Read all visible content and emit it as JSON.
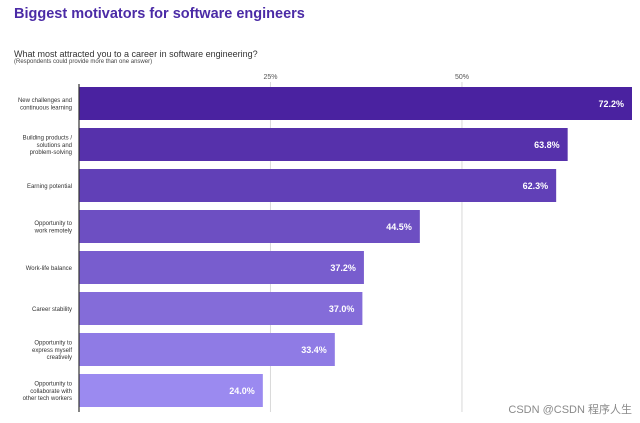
{
  "page": {
    "title": "Biggest motivators for software engineers",
    "question": "What most attracted you to a career in software engineering?",
    "note": "(Respondents could provide more than one answer)",
    "watermark": "CSDN @CSDN 程序人生"
  },
  "colors": {
    "title": "#4b2ba6",
    "bar_top": "#4a22a0",
    "bar_bottom": "#9b8af0",
    "gridline": "#d9d9d9",
    "axis": "#333333",
    "value_text": "#ffffff",
    "label_text": "#333333"
  },
  "chart_data": {
    "type": "bar",
    "orientation": "horizontal",
    "title": "Biggest motivators for software engineers",
    "subtitle": "What most attracted you to a career in software engineering?",
    "xlim": [
      0,
      72.2
    ],
    "ticks": [
      {
        "value": 25,
        "label": "25%"
      },
      {
        "value": 50,
        "label": "50%"
      }
    ],
    "grid": true,
    "categories": [
      "New challenges and continuous learning",
      "Building products / solutions and problem-solving",
      "Earning potential",
      "Opportunity to work remotely",
      "Work-life balance",
      "Career stability",
      "Opportunity to express myself creatively",
      "Opportunity to collaborate with other tech workers"
    ],
    "label_lines": [
      [
        "New challenges and",
        "continuous learning"
      ],
      [
        "Building products /",
        "solutions and",
        "problem-solving"
      ],
      [
        "Earning potential"
      ],
      [
        "Opportunity to",
        "work remotely"
      ],
      [
        "Work-life balance"
      ],
      [
        "Career stability"
      ],
      [
        "Opportunity to",
        "express myself",
        "creatively"
      ],
      [
        "Opportunity to",
        "collaborate with",
        "other tech workers"
      ]
    ],
    "values": [
      72.2,
      63.8,
      62.3,
      44.5,
      37.2,
      37.0,
      33.4,
      24.0
    ],
    "value_labels": [
      "72.2%",
      "63.8%",
      "62.3%",
      "44.5%",
      "37.2%",
      "37.0%",
      "33.4%",
      "24.0%"
    ]
  }
}
